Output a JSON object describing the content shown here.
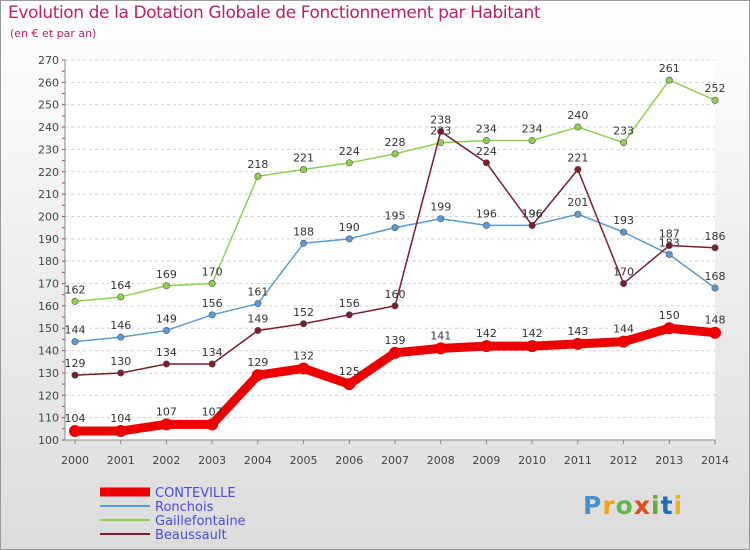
{
  "chart_data": {
    "type": "line",
    "title": "Evolution de la Dotation Globale de Fonctionnement par Habitant",
    "subtitle": "(en € et par an)",
    "x": [
      2000,
      2001,
      2002,
      2003,
      2004,
      2005,
      2006,
      2007,
      2008,
      2009,
      2010,
      2011,
      2012,
      2013,
      2014
    ],
    "ylim": [
      100,
      270
    ],
    "yticks": [
      100,
      110,
      120,
      130,
      140,
      150,
      160,
      170,
      180,
      190,
      200,
      210,
      220,
      230,
      240,
      250,
      260,
      270
    ],
    "grid": "horizontal, dashed",
    "legend_position": "bottom-left",
    "series": [
      {
        "name": "Gaillefontaine",
        "color": "#8fd14f",
        "values": [
          162,
          164,
          169,
          170,
          218,
          221,
          224,
          228,
          233,
          234,
          234,
          240,
          233,
          261,
          252
        ]
      },
      {
        "name": "Ronchois",
        "color": "#5b9bd5",
        "values": [
          144,
          146,
          149,
          156,
          161,
          188,
          190,
          195,
          199,
          196,
          196,
          201,
          193,
          183,
          168
        ]
      },
      {
        "name": "Beaussault",
        "color": "#7a1d2d",
        "values": [
          129,
          130,
          134,
          134,
          149,
          152,
          156,
          160,
          238,
          224,
          196,
          221,
          170,
          187,
          186
        ]
      },
      {
        "name": "CONTEVILLE",
        "color": "#ee0000",
        "values": [
          104,
          104,
          107,
          107,
          129,
          132,
          125,
          139,
          141,
          142,
          142,
          143,
          144,
          150,
          148
        ]
      }
    ],
    "legend_order": [
      "CONTEVILLE",
      "Ronchois",
      "Gaillefontaine",
      "Beaussault"
    ]
  },
  "logo": {
    "letters": [
      "P",
      "r",
      "o",
      "x",
      "i",
      "t",
      "i"
    ]
  }
}
